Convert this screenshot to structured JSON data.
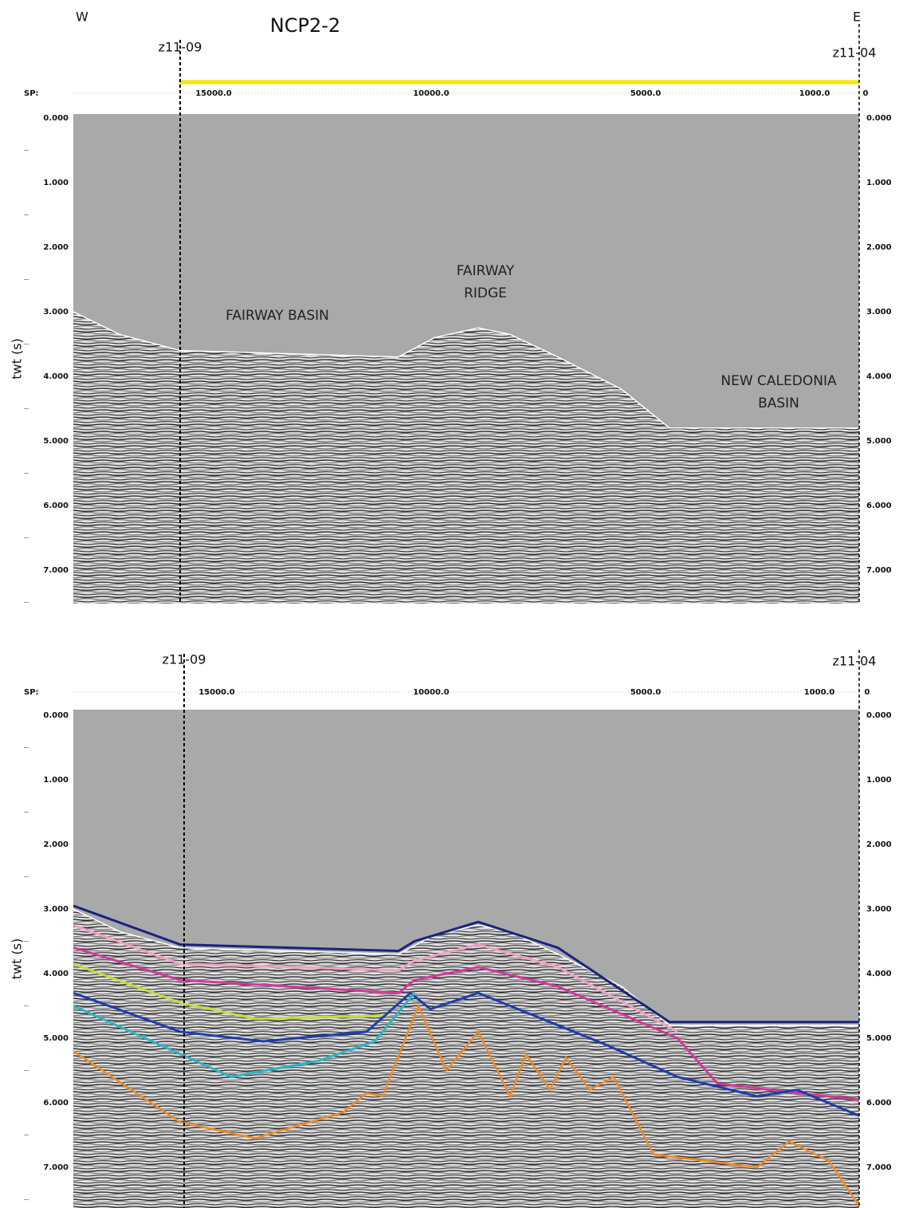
{
  "header": {
    "west": "W",
    "title": "NCP2-2",
    "east": "E"
  },
  "panels": [
    {
      "well_left": "z11-09",
      "well_right": "z11-04",
      "sp_label": "SP:",
      "sp_ticks": [
        "15000.0",
        "10000.0",
        "5000.0",
        "1000.0",
        "0"
      ],
      "y_axis_label": "twt (s)",
      "y_ticks": [
        "0.000",
        "1.000",
        "2.000",
        "3.000",
        "4.000",
        "5.000",
        "6.000",
        "7.000"
      ],
      "annotations": [
        [
          "FAIRWAY BASIN"
        ],
        [
          "FAIRWAY",
          "RIDGE"
        ],
        [
          "NEW CALEDONIA",
          "BASIN"
        ]
      ]
    },
    {
      "well_left": "z11-09",
      "well_right": "z11-04",
      "sp_label": "SP:",
      "sp_ticks": [
        "15000.0",
        "10000.0",
        "5000.0",
        "1000.0",
        "0"
      ],
      "y_axis_label": "twt (s)",
      "y_ticks": [
        "0.000",
        "1.000",
        "2.000",
        "3.000",
        "4.000",
        "5.000",
        "6.000",
        "7.000"
      ],
      "annotations": []
    }
  ]
}
